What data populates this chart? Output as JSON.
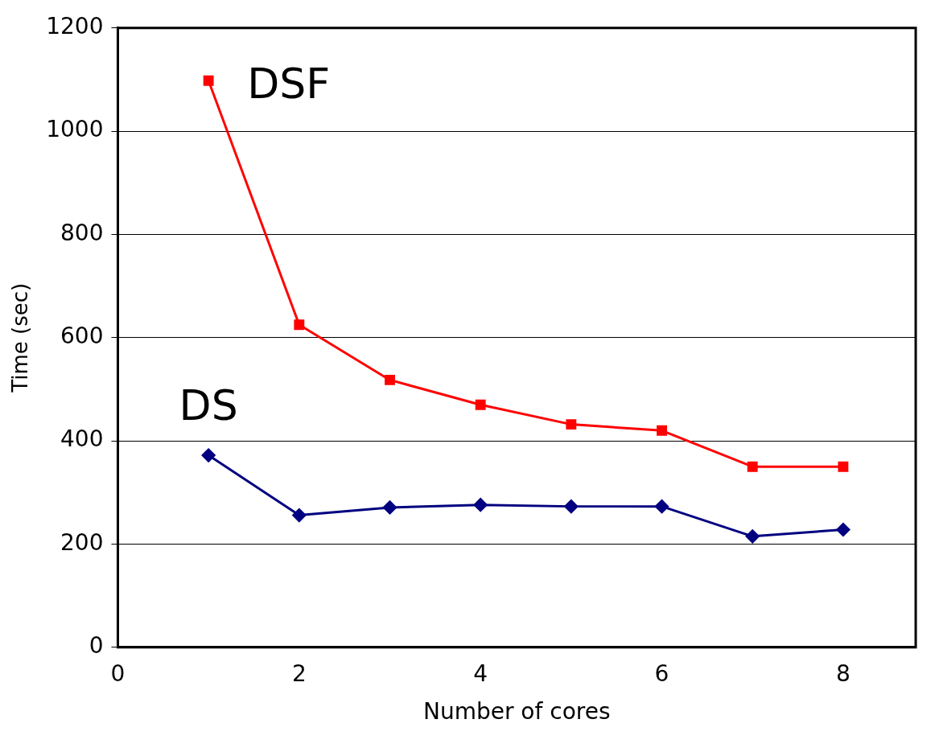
{
  "chart_data": {
    "type": "line",
    "xlabel": "Number of cores",
    "ylabel": "Time (sec)",
    "x": [
      1,
      2,
      3,
      4,
      5,
      6,
      7,
      8
    ],
    "series": [
      {
        "name": "DSF",
        "color": "#ff0000",
        "marker": "square",
        "values": [
          1098,
          625,
          518,
          470,
          432,
          420,
          350,
          350
        ]
      },
      {
        "name": "DS",
        "color": "#000080",
        "marker": "diamond",
        "values": [
          372,
          256,
          271,
          276,
          273,
          273,
          215,
          228
        ]
      }
    ],
    "xlim": [
      0,
      8.8
    ],
    "xticks": [
      0,
      2,
      4,
      6,
      8
    ],
    "ylim": [
      0,
      1200
    ],
    "yticks": [
      0,
      200,
      400,
      600,
      800,
      1000,
      1200
    ],
    "grid": "y",
    "legend": false,
    "line_style": "solid"
  }
}
